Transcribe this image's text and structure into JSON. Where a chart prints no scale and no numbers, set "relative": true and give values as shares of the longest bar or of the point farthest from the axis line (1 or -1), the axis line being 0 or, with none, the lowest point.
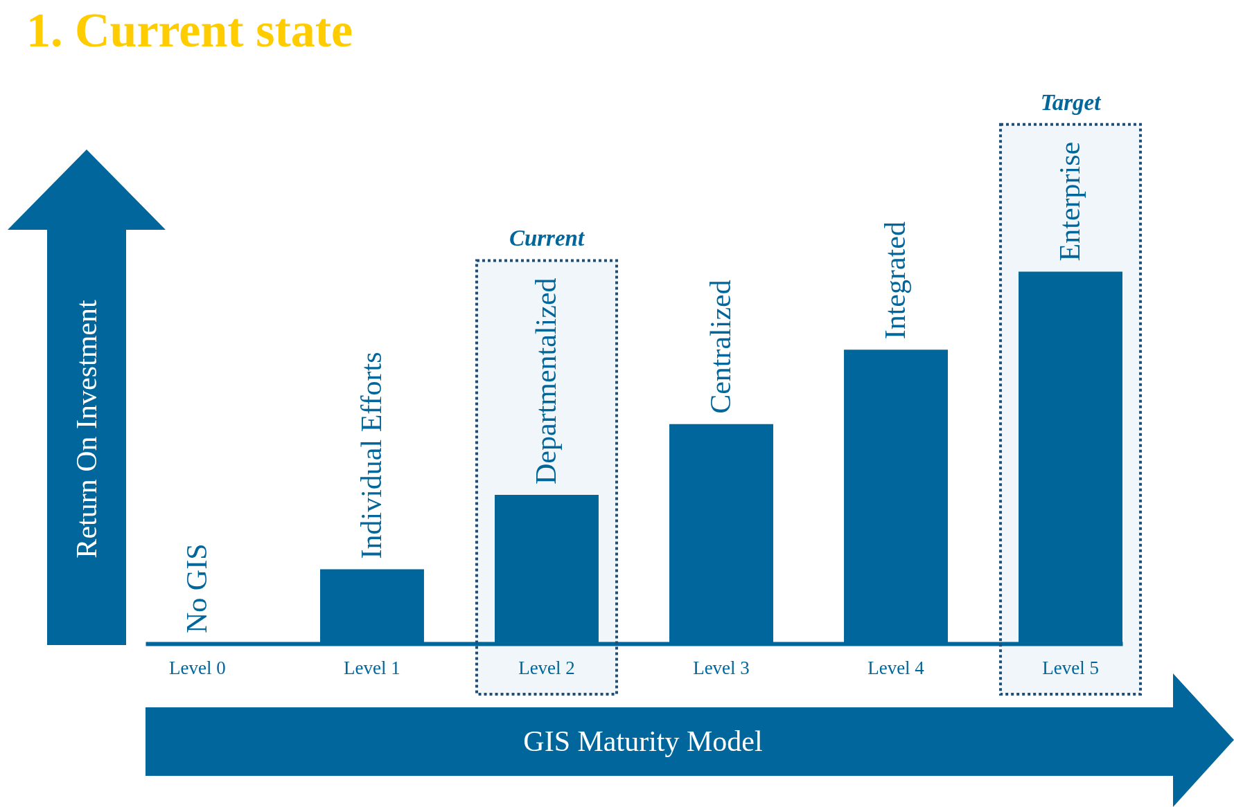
{
  "chart_data": {
    "type": "bar",
    "title": "1. Current state",
    "xlabel": "GIS Maturity Model",
    "ylabel": "Return On Investment",
    "relative": true,
    "color": "#00669b",
    "categories": [
      "Level 0",
      "Level 1",
      "Level 2",
      "Level 3",
      "Level 4",
      "Level 5"
    ],
    "values": [
      0,
      0.2,
      0.4,
      0.59,
      0.79,
      1
    ],
    "annotations": [
      {
        "text": "No GIS",
        "x": "Level 0",
        "y": 0
      },
      {
        "text": "Individual Efforts",
        "x": "Level 1",
        "y": 0.2
      },
      {
        "text": "Departmentalized",
        "x": "Level 2",
        "y": 0.4
      },
      {
        "text": "Centralized",
        "x": "Level 3",
        "y": 0.59
      },
      {
        "text": "Integrated",
        "x": "Level 4",
        "y": 0.79
      },
      {
        "text": "Enterprise",
        "x": "Level 5",
        "y": 1
      }
    ],
    "bands": [
      {
        "axis": "x",
        "from": "Level 2",
        "to": "Level 2",
        "label": "Current"
      },
      {
        "axis": "x",
        "from": "Level 5",
        "to": "Level 5",
        "label": "Target"
      }
    ]
  }
}
